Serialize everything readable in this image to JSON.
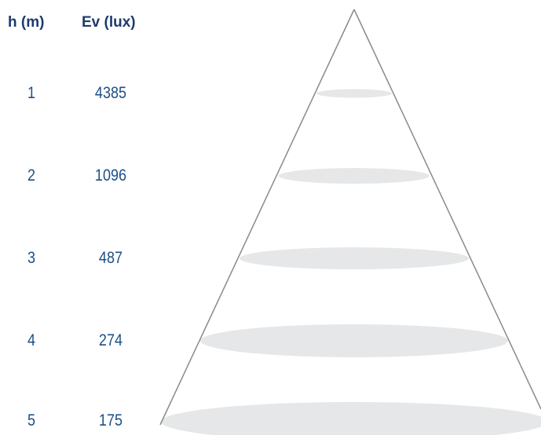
{
  "headers": {
    "height": "h (m)",
    "illuminance": "Ev (lux)"
  },
  "chart_data": {
    "type": "table",
    "columns": [
      "h (m)",
      "Ev (lux)"
    ],
    "rows": [
      {
        "h": "1",
        "ev": "4385"
      },
      {
        "h": "2",
        "ev": "1096"
      },
      {
        "h": "3",
        "ev": "487"
      },
      {
        "h": "4",
        "ev": "274"
      },
      {
        "h": "5",
        "ev": "175"
      }
    ]
  },
  "colors": {
    "header_text": "#1d3b6e",
    "value_text": "#1d4f86",
    "cone_line": "#8a8a8a",
    "ellipse_fill": "#e6e7e8"
  }
}
